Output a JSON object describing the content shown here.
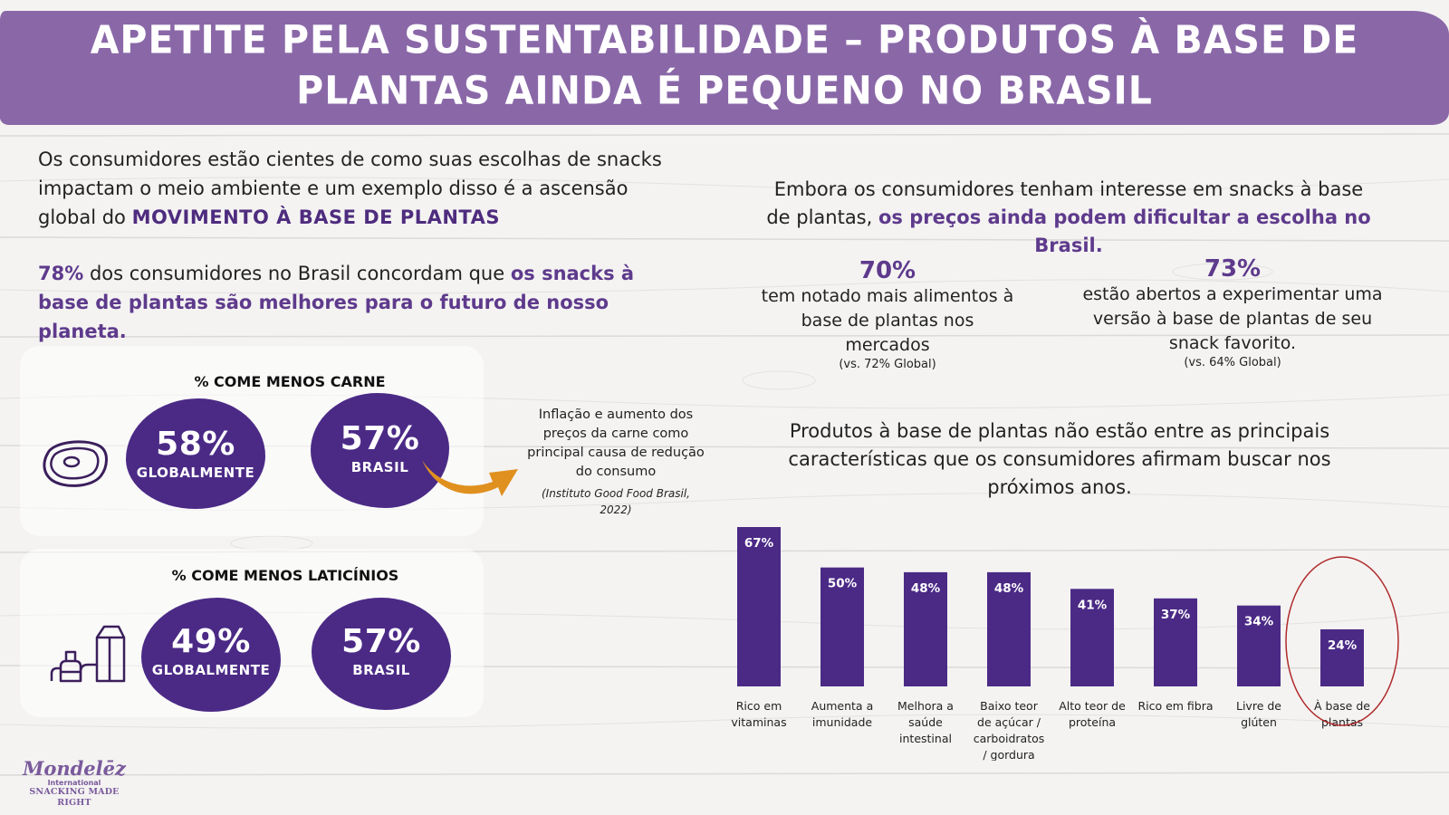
{
  "title": "APETITE PELA SUSTENTABILIDADE – PRODUTOS À BASE DE PLANTAS AINDA É PEQUENO NO BRASIL",
  "intro": {
    "text": "Os consumidores estão cientes de como suas escolhas de snacks impactam o meio ambiente e um exemplo disso é a ascensão global do ",
    "highlight": "MOVIMENTO À BASE DE PLANTAS"
  },
  "stat78": {
    "pct": "78%",
    "text": " dos consumidores no Brasil concordam que ",
    "highlight": "os snacks à base de plantas são melhores para o futuro de nosso planeta."
  },
  "meat": {
    "title": "% COME MENOS CARNE",
    "global_pct": "58%",
    "global_label": "GLOBALMENTE",
    "brazil_pct": "57%",
    "brazil_label": "BRASIL",
    "icon": "steak-icon"
  },
  "dairy": {
    "title": "% COME MENOS LATICÍNIOS",
    "global_pct": "49%",
    "global_label": "GLOBALMENTE",
    "brazil_pct": "57%",
    "brazil_label": "BRASIL",
    "icon": "dairy-icon"
  },
  "note": {
    "text": "Inflação e aumento dos preços da carne como principal causa de redução do consumo",
    "source": "(Instituto Good Food Brasil, 2022)"
  },
  "right_intro": {
    "text": "Embora os consumidores tenham interesse em snacks à base de plantas, ",
    "highlight": "os preços ainda podem dificultar a escolha no Brasil."
  },
  "stat70": {
    "pct": "70%",
    "text": "tem notado mais alimentos à base de plantas nos mercados",
    "vs": "(vs. 72% Global)"
  },
  "stat73": {
    "pct": "73%",
    "text": "estão abertos a experimentar uma versão à base de plantas de seu snack favorito.",
    "vs": "(vs. 64% Global)"
  },
  "chart_title": "Produtos à base de plantas não estão entre as principais características que os consumidores afirmam buscar nos próximos anos.",
  "chart_data": {
    "type": "bar",
    "title": "Produtos à base de plantas não estão entre as principais características que os consumidores afirmam buscar nos próximos anos.",
    "categories": [
      [
        "Rico em",
        "vitaminas"
      ],
      [
        "Aumenta a",
        "imunidade"
      ],
      [
        "Melhora a",
        "saúde",
        "intestinal"
      ],
      [
        "Baixo teor",
        "de açúcar /",
        "carboidratos",
        "/ gordura"
      ],
      [
        "Alto teor de",
        "proteína"
      ],
      [
        "Rico em fibra"
      ],
      [
        "Livre de",
        "glúten"
      ],
      [
        "À base de",
        "plantas"
      ]
    ],
    "values": [
      67,
      50,
      48,
      48,
      41,
      37,
      34,
      24
    ],
    "labels": [
      "67%",
      "50%",
      "48%",
      "48%",
      "41%",
      "37%",
      "34%",
      "24%"
    ],
    "highlighted_category": 7,
    "ylim": [
      0,
      67
    ],
    "bar_color": "#4b2a86",
    "highlight_color": "#b02a2a"
  },
  "logo": {
    "brand": "Mondelēz",
    "sub": "International",
    "tagline": "SNACKING MADE RIGHT"
  },
  "colors": {
    "banner": "#8a68a8",
    "purple": "#5e3a8c",
    "blob": "#4b2a86",
    "arrow": "#e0901e"
  }
}
